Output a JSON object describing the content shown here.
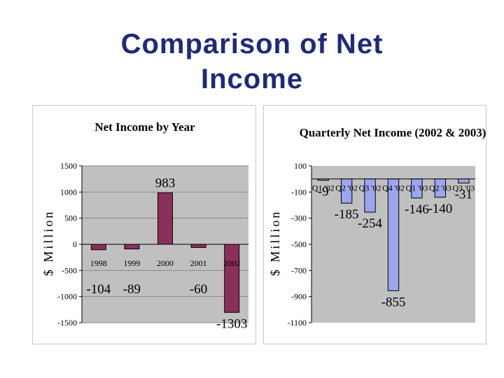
{
  "slide": {
    "title_line1": "Comparison of Net",
    "title_line2": "Income"
  },
  "colors": {
    "title": "#1f2a78",
    "plot_bg": "#c0c0c0",
    "bar_left": "#8b2f5a",
    "bar_right": "#9aa6ee"
  },
  "chart_data": [
    {
      "type": "bar",
      "title": "Net Income by Year",
      "ylabel": "$ Million",
      "categories": [
        "1998",
        "1999",
        "2000",
        "2001",
        "2002"
      ],
      "values": [
        -104,
        -89,
        983,
        -60,
        -1303
      ],
      "value_labels": [
        "-104",
        "-89",
        "983",
        "-60",
        "-1303"
      ],
      "yticks": [
        "1500",
        "1000",
        "500",
        "0",
        "-500",
        "-1000",
        "-1500"
      ],
      "ylim": [
        -1500,
        1500
      ],
      "grid": true,
      "legend": "none"
    },
    {
      "type": "bar",
      "title": "Quarterly Net Income (2002 & 2003)",
      "ylabel": "$ Million",
      "categories": [
        "Q1 '02",
        "Q2 '02",
        "Q3 '02",
        "Q4 '02",
        "Q1 '03",
        "Q2 '03",
        "Q3 '03"
      ],
      "values": [
        -9,
        -185,
        -254,
        -855,
        -146,
        -140,
        -31
      ],
      "value_labels": [
        "-9",
        "-185",
        "-254",
        "-855",
        "-146",
        "-140",
        "-31"
      ],
      "yticks": [
        "100",
        "-100",
        "-300",
        "-500",
        "-700",
        "-900",
        "-1100"
      ],
      "ylim": [
        -1100,
        100
      ],
      "grid": false,
      "legend": "none"
    }
  ]
}
